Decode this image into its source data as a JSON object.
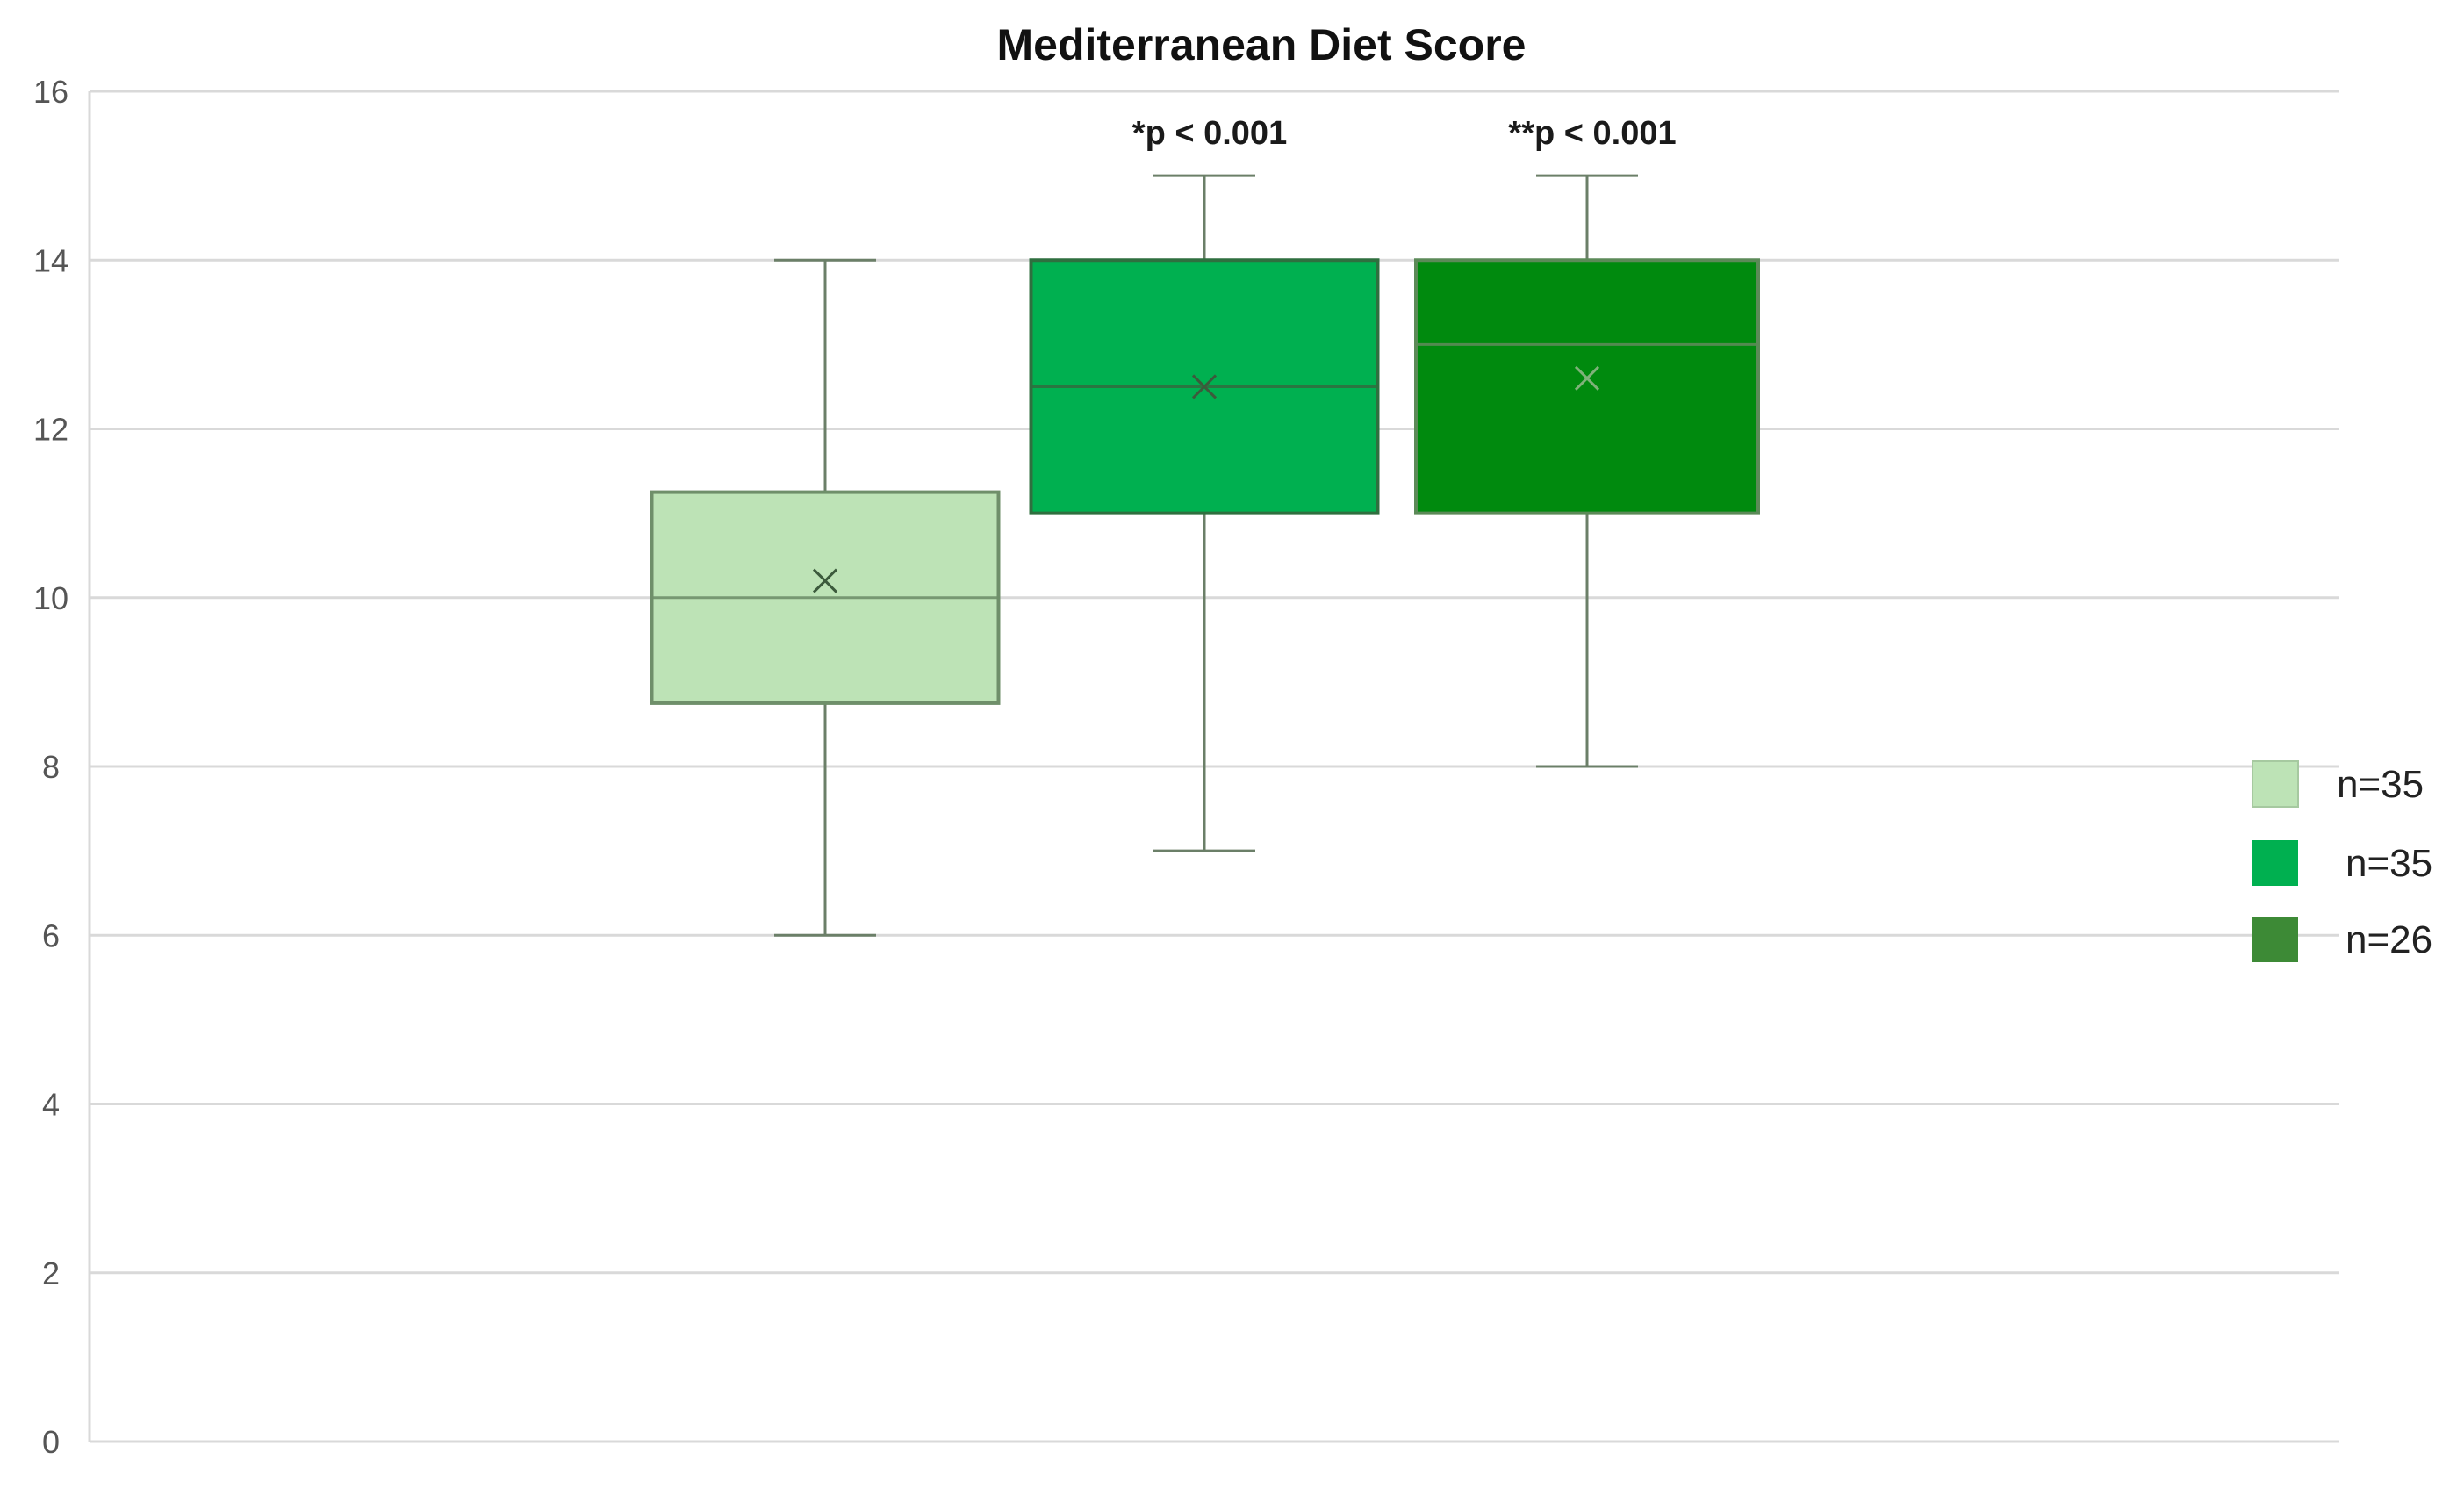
{
  "chart_data": {
    "type": "box",
    "title": "Mediterranean Diet Score",
    "xlabel": "",
    "ylabel": "",
    "ylim": [
      0,
      16
    ],
    "yticks": [
      "0",
      "2",
      "4",
      "6",
      "8",
      "10",
      "12",
      "14",
      "16"
    ],
    "grid": true,
    "legend_position": "right",
    "series": [
      {
        "name": "n=35",
        "color": "#bde3b6",
        "border": "#6f8f6a",
        "min": 6,
        "q1": 8.75,
        "median": 10,
        "q3": 11.25,
        "max": 14,
        "mean": 10.2,
        "annotation": ""
      },
      {
        "name": "n=35",
        "color": "#00b050",
        "border": "#2f6f3f",
        "min": 7,
        "q1": 11,
        "median": 12.5,
        "q3": 14,
        "max": 15,
        "mean": 12.5,
        "annotation": "*p < 0.001"
      },
      {
        "name": "n=26",
        "color": "#008a0e",
        "border": "#5c8a58",
        "min": 8,
        "q1": 11,
        "median": 13,
        "q3": 14,
        "max": 15,
        "mean": 12.6,
        "annotation": "**p < 0.001"
      }
    ],
    "legend": [
      {
        "label": "n=35",
        "color": "#bde3b6"
      },
      {
        "label": "n=35",
        "color": "#00b050"
      },
      {
        "label": "n=26",
        "color": "#3d8a36"
      }
    ]
  }
}
